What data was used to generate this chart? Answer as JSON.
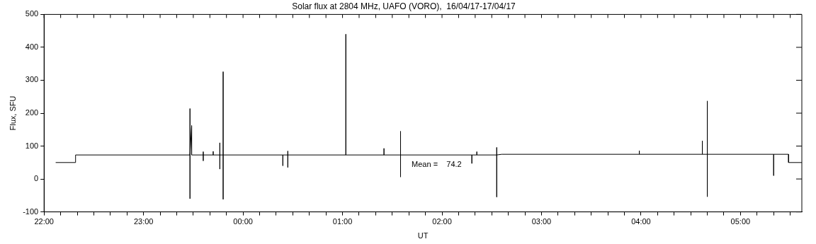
{
  "chart_data": {
    "type": "line",
    "title": "Solar flux at 2804 MHz, UAFO (VORO),  16/04/17-17/04/17",
    "xlabel": "UT",
    "ylabel": "Flux, SFU",
    "annotations": [
      "Mean =    74.2"
    ],
    "xlim": [
      "--04-16T22:00",
      "--04-17T05:37"
    ],
    "ylim": [
      -100,
      500
    ],
    "yticks": [
      -100,
      0,
      100,
      200,
      300,
      400,
      500
    ],
    "xticks": [
      {
        "value": "--04-16T22:00",
        "label": "22:00"
      },
      {
        "value": "--04-16T22:10",
        "label": null
      },
      {
        "value": "--04-16T22:20",
        "label": null
      },
      {
        "value": "--04-16T22:30",
        "label": null
      },
      {
        "value": "--04-16T22:40",
        "label": null
      },
      {
        "value": "--04-16T22:50",
        "label": null
      },
      {
        "value": "--04-16T23:00",
        "label": "23:00"
      },
      {
        "value": "--04-16T23:10",
        "label": null
      },
      {
        "value": "--04-16T23:20",
        "label": null
      },
      {
        "value": "--04-16T23:30",
        "label": null
      },
      {
        "value": "--04-16T23:40",
        "label": null
      },
      {
        "value": "--04-16T23:50",
        "label": null
      },
      {
        "value": "--04-17T00:00",
        "label": "00:00"
      },
      {
        "value": "--04-17T00:10",
        "label": null
      },
      {
        "value": "--04-17T00:20",
        "label": null
      },
      {
        "value": "--04-17T00:30",
        "label": null
      },
      {
        "value": "--04-17T00:40",
        "label": null
      },
      {
        "value": "--04-17T00:50",
        "label": null
      },
      {
        "value": "--04-17T01:00",
        "label": "01:00"
      },
      {
        "value": "--04-17T01:10",
        "label": null
      },
      {
        "value": "--04-17T01:20",
        "label": null
      },
      {
        "value": "--04-17T01:30",
        "label": null
      },
      {
        "value": "--04-17T01:40",
        "label": null
      },
      {
        "value": "--04-17T01:50",
        "label": null
      },
      {
        "value": "--04-17T02:00",
        "label": "02:00"
      },
      {
        "value": "--04-17T02:10",
        "label": null
      },
      {
        "value": "--04-17T02:20",
        "label": null
      },
      {
        "value": "--04-17T02:30",
        "label": null
      },
      {
        "value": "--04-17T02:40",
        "label": null
      },
      {
        "value": "--04-17T02:50",
        "label": null
      },
      {
        "value": "--04-17T03:00",
        "label": "03:00"
      },
      {
        "value": "--04-17T03:10",
        "label": null
      },
      {
        "value": "--04-17T03:20",
        "label": null
      },
      {
        "value": "--04-17T03:30",
        "label": null
      },
      {
        "value": "--04-17T03:40",
        "label": null
      },
      {
        "value": "--04-17T03:50",
        "label": null
      },
      {
        "value": "--04-17T04:00",
        "label": "04:00"
      },
      {
        "value": "--04-17T04:10",
        "label": null
      },
      {
        "value": "--04-17T04:20",
        "label": null
      },
      {
        "value": "--04-17T04:30",
        "label": null
      },
      {
        "value": "--04-17T04:40",
        "label": null
      },
      {
        "value": "--04-17T04:50",
        "label": null
      },
      {
        "value": "--04-17T05:00",
        "label": "05:00"
      },
      {
        "value": "--04-17T05:10",
        "label": null
      },
      {
        "value": "--04-17T05:20",
        "label": null
      },
      {
        "value": "--04-17T05:30",
        "label": null
      }
    ],
    "grid": false,
    "legend": false,
    "marker": "none",
    "line_style": "solid",
    "series": [
      {
        "color": "#000000",
        "x": [
          "--04-16T22:07",
          "--04-16T22:19",
          "--04-16T22:19",
          "--04-16T23:28",
          "--04-16T23:28",
          "--04-16T23:28",
          "--04-16T23:28",
          "--04-16T23:29",
          "--04-16T23:29",
          "--04-16T23:36",
          "--04-16T23:36",
          "--04-16T23:36",
          "--04-16T23:36",
          "--04-16T23:42",
          "--04-16T23:42",
          "--04-16T23:42",
          "--04-16T23:46",
          "--04-16T23:46",
          "--04-16T23:46",
          "--04-16T23:46",
          "--04-16T23:48",
          "--04-16T23:48",
          "--04-16T23:48",
          "--04-16T23:48",
          "--04-17T00:24",
          "--04-17T00:24",
          "--04-17T00:24",
          "--04-17T00:27",
          "--04-17T00:27",
          "--04-17T00:27",
          "--04-17T00:27",
          "--04-17T01:02",
          "--04-17T01:02",
          "--04-17T01:02",
          "--04-17T01:25",
          "--04-17T01:25",
          "--04-17T01:25",
          "--04-17T01:35",
          "--04-17T01:35",
          "--04-17T01:35",
          "--04-17T01:35",
          "--04-17T02:18",
          "--04-17T02:18",
          "--04-17T02:18",
          "--04-17T02:21",
          "--04-17T02:21",
          "--04-17T02:21",
          "--04-17T02:33",
          "--04-17T02:33",
          "--04-17T02:33",
          "--04-17T02:33",
          "--04-17T02:36",
          "--04-17T03:59",
          "--04-17T03:59",
          "--04-17T03:59",
          "--04-17T04:37",
          "--04-17T04:37",
          "--04-17T04:37",
          "--04-17T04:40",
          "--04-17T04:40",
          "--04-17T04:40",
          "--04-17T04:40",
          "--04-17T05:20",
          "--04-17T05:20",
          "--04-17T05:20",
          "--04-17T05:29",
          "--04-17T05:29",
          "--04-17T05:37"
        ],
        "values": [
          50,
          50,
          73,
          73,
          214,
          -60,
          73,
          162,
          73,
          73,
          83,
          55,
          73,
          73,
          84,
          73,
          73,
          110,
          30,
          73,
          73,
          326,
          -62,
          73,
          73,
          40,
          73,
          73,
          35,
          85,
          73,
          73,
          440,
          73,
          73,
          93,
          73,
          73,
          145,
          6,
          73,
          73,
          47,
          73,
          73,
          83,
          73,
          73,
          96,
          -55,
          73,
          75,
          75,
          86,
          75,
          75,
          116,
          75,
          75,
          237,
          -54,
          75,
          75,
          10,
          75,
          75,
          50,
          50
        ]
      }
    ]
  }
}
